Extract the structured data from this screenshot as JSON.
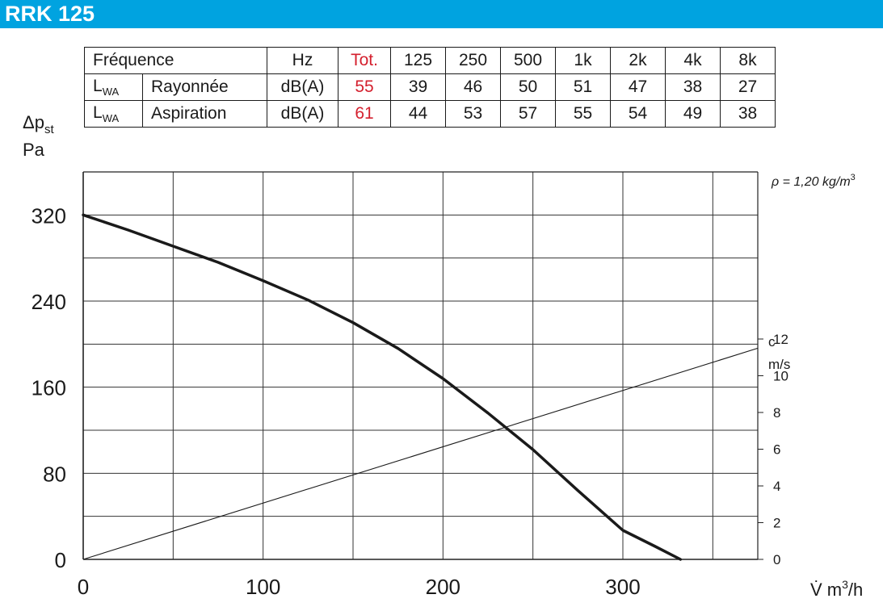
{
  "header": {
    "title": "RRK 125",
    "bar_color": "#00a3e0"
  },
  "sound_table": {
    "header_row": {
      "label": "Fréquence",
      "unit": "Hz",
      "tot": "Tot.",
      "bands": [
        "125",
        "250",
        "500",
        "1k",
        "2k",
        "4k",
        "8k"
      ]
    },
    "rows": [
      {
        "main": "L",
        "sub": "WA",
        "type": "Rayonnée",
        "unit": "dB(A)",
        "tot": "55",
        "values": [
          "39",
          "46",
          "50",
          "51",
          "47",
          "38",
          "27"
        ]
      },
      {
        "main": "L",
        "sub": "WA",
        "type": "Aspiration",
        "unit": "dB(A)",
        "tot": "61",
        "values": [
          "44",
          "53",
          "57",
          "55",
          "54",
          "49",
          "38"
        ]
      }
    ],
    "tot_color": "#d4202e"
  },
  "chart_data": {
    "type": "line",
    "ylabel_main": "Δp",
    "ylabel_sub": "st",
    "yunit": "Pa",
    "xlabel_main": "V̇ m",
    "xlabel_sup": "3",
    "xlabel_end": "/h",
    "density_main": "ρ = 1,20 kg/m",
    "density_sup": "3",
    "xlim": [
      0,
      375
    ],
    "ylim": [
      0,
      360
    ],
    "x_ticks": [
      "0",
      "100",
      "200",
      "300"
    ],
    "y_ticks": [
      "0",
      "80",
      "160",
      "240",
      "320"
    ],
    "right_axis": {
      "label_top": "c",
      "label_unit": "m/s",
      "ticks": [
        "0",
        "2",
        "4",
        "6",
        "8",
        "10",
        "12"
      ]
    },
    "series": [
      {
        "x": [
          0,
          25,
          50,
          75,
          100,
          125,
          150,
          175,
          200,
          225,
          250,
          275,
          300,
          318,
          332
        ],
        "y": [
          320,
          306,
          291,
          276,
          259,
          241,
          220,
          196,
          168,
          136,
          102,
          64,
          27,
          12,
          0
        ]
      },
      {
        "x": [
          0,
          375
        ],
        "y": [
          0,
          11.5
        ]
      }
    ]
  }
}
